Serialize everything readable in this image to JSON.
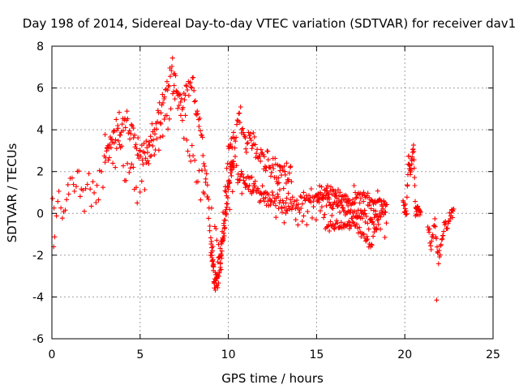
{
  "chart_data": {
    "type": "scatter",
    "title": "Day 198 of 2014, Sidereal Day-to-day VTEC variation (SDTVAR) for receiver dav1",
    "xlabel": "GPS time / hours",
    "ylabel": "SDTVAR / TECUs",
    "xlim": [
      0,
      25
    ],
    "ylim": [
      -6,
      8
    ],
    "x_ticks": [
      0,
      5,
      10,
      15,
      20,
      25
    ],
    "y_ticks": [
      -6,
      -4,
      -2,
      0,
      2,
      4,
      6,
      8
    ],
    "x_tick_labels": [
      "0",
      "5",
      "10",
      "15",
      "20",
      "25"
    ],
    "y_tick_labels": [
      "-6",
      "-4",
      "-2",
      "0",
      "2",
      "4",
      "6",
      "8"
    ],
    "grid": true,
    "marker": "+",
    "series": [
      {
        "name": "dav1",
        "color": "#ff0000",
        "tracks": [
          {
            "x": [
              0.0,
              0.2,
              0.4,
              0.6,
              0.8,
              1.0,
              1.3,
              1.6,
              2.0,
              2.5,
              3.0,
              3.5,
              4.0,
              4.5,
              5.0,
              5.5,
              6.0,
              6.5,
              7.0,
              7.5,
              8.0,
              8.5,
              9.0,
              9.2,
              9.4,
              9.6,
              9.8,
              10.0,
              10.3,
              10.6,
              11.0,
              11.5,
              12.0,
              12.5,
              13.0,
              13.5,
              14.0,
              14.5,
              15.0,
              15.5,
              16.0,
              16.5,
              17.0,
              17.5,
              18.0,
              18.5,
              19.0
            ],
            "y": [
              0.5,
              -0.5,
              0.2,
              0.8,
              0.5,
              1.0,
              1.4,
              1.2,
              1.0,
              1.5,
              2.3,
              3.0,
              2.7,
              1.6,
              1.8,
              2.4,
              3.2,
              4.6,
              5.5,
              4.3,
              3.0,
              1.2,
              0.0,
              -0.8,
              -1.5,
              -1.6,
              -0.5,
              0.8,
              1.7,
              2.0,
              1.9,
              1.4,
              1.1,
              0.8,
              0.6,
              0.4,
              0.1,
              0.0,
              0.3,
              0.4,
              0.3,
              0.2,
              0.2,
              0.1,
              0.0,
              -0.1,
              -0.2
            ],
            "spread": 1.3,
            "density": 240
          },
          {
            "x": [
              3.0,
              3.4,
              3.8,
              4.2,
              4.6,
              5.0,
              5.5,
              6.0,
              6.5,
              6.8,
              7.0,
              7.3,
              7.6,
              8.0
            ],
            "y": [
              3.1,
              3.6,
              4.3,
              4.5,
              3.6,
              2.8,
              3.3,
              4.5,
              5.8,
              7.0,
              6.2,
              5.0,
              6.1,
              6.3
            ],
            "spread": 0.7,
            "density": 120
          },
          {
            "x": [
              8.0,
              8.4,
              8.8,
              9.0,
              9.2,
              9.4,
              9.6,
              9.8,
              10.0,
              10.3,
              10.6,
              11.0,
              11.4,
              11.8,
              12.2,
              12.6,
              13.0,
              13.3,
              13.6
            ],
            "y": [
              6.0,
              4.2,
              1.0,
              -1.5,
              -3.0,
              -2.8,
              -1.5,
              0.5,
              3.0,
              3.6,
              4.6,
              3.4,
              3.6,
              2.9,
              2.5,
              2.2,
              2.0,
              1.7,
              1.6
            ],
            "spread": 0.8,
            "density": 150
          },
          {
            "x": [
              9.0,
              9.2,
              9.4,
              9.6,
              9.8,
              10.0,
              10.3
            ],
            "y": [
              -1.0,
              -3.2,
              -3.1,
              -2.0,
              -0.5,
              1.5,
              2.5
            ],
            "spread": 0.7,
            "density": 80
          },
          {
            "x": [
              10.5,
              11.0,
              11.5,
              12.0,
              12.5,
              13.0,
              13.5,
              14.0,
              14.5,
              15.0,
              15.5,
              16.0,
              16.5,
              17.0,
              17.5,
              18.0,
              18.5,
              19.0
            ],
            "y": [
              1.6,
              1.5,
              1.2,
              0.9,
              0.6,
              0.4,
              0.3,
              0.6,
              0.8,
              1.0,
              0.9,
              0.4,
              0.2,
              0.0,
              -0.1,
              -0.4,
              -0.1,
              0.2
            ],
            "spread": 0.5,
            "density": 150
          },
          {
            "x": [
              15.0,
              15.4,
              15.8,
              16.2,
              16.6,
              17.0,
              17.4,
              17.8,
              18.2,
              18.6,
              19.0
            ],
            "y": [
              0.8,
              0.8,
              1.0,
              0.9,
              0.7,
              0.5,
              0.9,
              0.8,
              0.5,
              0.6,
              0.3
            ],
            "spread": 0.3,
            "density": 80
          },
          {
            "x": [
              15.5,
              16.0,
              16.5,
              17.0,
              17.5,
              17.8,
              18.0,
              18.3,
              18.6
            ],
            "y": [
              -0.8,
              -0.5,
              -0.7,
              -0.4,
              -0.9,
              -1.2,
              -1.7,
              -0.8,
              -0.2
            ],
            "spread": 0.3,
            "density": 60
          },
          {
            "x": [
              19.9,
              20.1,
              20.2,
              20.3,
              20.4,
              20.5,
              20.6,
              20.8,
              20.9
            ],
            "y": [
              0.6,
              0.0,
              2.8,
              1.9,
              2.5,
              3.2,
              0.2,
              0.1,
              0.0
            ],
            "spread": 0.35,
            "density": 60
          },
          {
            "x": [
              21.3,
              21.5,
              21.7,
              21.9,
              22.2,
              22.5,
              22.8
            ],
            "y": [
              -0.6,
              -1.6,
              -0.4,
              -2.3,
              -0.8,
              -0.3,
              0.3
            ],
            "spread": 0.4,
            "density": 50
          }
        ],
        "isolated_points": [
          {
            "x": 21.8,
            "y": -4.15
          },
          {
            "x": 0.1,
            "y": -1.6
          },
          {
            "x": 22.7,
            "y": -0.2
          }
        ]
      }
    ]
  }
}
